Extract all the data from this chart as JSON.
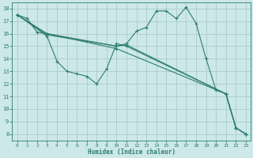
{
  "background_color": "#cce8e8",
  "grid_color": "#aacccc",
  "line_color": "#2e7d6e",
  "marker_color": "#2e7d6e",
  "xlabel": "Humidex (Indice chaleur)",
  "xlim": [
    -0.5,
    23.5
  ],
  "ylim": [
    7.5,
    18.5
  ],
  "yticks": [
    8,
    9,
    10,
    11,
    12,
    13,
    14,
    15,
    16,
    17,
    18
  ],
  "xticks": [
    0,
    1,
    2,
    3,
    4,
    5,
    6,
    7,
    8,
    9,
    10,
    11,
    12,
    13,
    14,
    15,
    16,
    17,
    18,
    19,
    20,
    21,
    22,
    23
  ],
  "series": [
    {
      "x": [
        0,
        1,
        2,
        3,
        10,
        11,
        12,
        13,
        14,
        15,
        16,
        17,
        18,
        19,
        20,
        21,
        22,
        23
      ],
      "y": [
        17.5,
        17.2,
        16.1,
        16.0,
        15.0,
        15.2,
        16.2,
        16.5,
        17.8,
        17.8,
        17.2,
        18.1,
        16.8,
        14.0,
        11.5,
        11.2,
        8.5,
        8.0
      ]
    },
    {
      "x": [
        0,
        3,
        4,
        5,
        6,
        7,
        8,
        9,
        10,
        11,
        21,
        22,
        23
      ],
      "y": [
        17.5,
        15.8,
        13.8,
        13.0,
        12.8,
        12.6,
        12.0,
        13.2,
        15.2,
        15.0,
        11.2,
        8.5,
        8.0
      ]
    },
    {
      "x": [
        0,
        3,
        10,
        11,
        21,
        22,
        23
      ],
      "y": [
        17.5,
        15.9,
        15.0,
        15.1,
        11.2,
        8.5,
        8.0
      ]
    },
    {
      "x": [
        0,
        3,
        10,
        21,
        22,
        23
      ],
      "y": [
        17.5,
        16.0,
        14.8,
        11.2,
        8.5,
        8.0
      ]
    }
  ]
}
